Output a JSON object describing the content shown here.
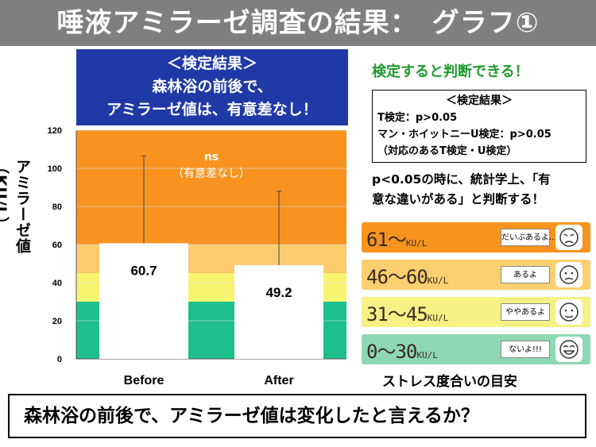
{
  "title": "唾液アミラーゼ調査の結果：　グラフ①",
  "result_box": {
    "line1": "＜検定結果＞",
    "line2": "森林浴の前後で、",
    "line3": "アミラーゼ値は、有意差なし！"
  },
  "chart_data": {
    "type": "bar",
    "categories": [
      "Before",
      "After"
    ],
    "values": [
      60.7,
      49.2
    ],
    "error_upper": [
      106.5,
      88.0
    ],
    "ylabel": "アミラーゼ値（KU/L）",
    "yticks": [
      0,
      20,
      40,
      60,
      80,
      100,
      120
    ],
    "ylim": [
      0,
      120
    ],
    "annotation": {
      "line1": "ns",
      "line2": "（有意差なし）"
    },
    "bands": [
      {
        "from": 0,
        "to": 30,
        "color": "#1dc08c"
      },
      {
        "from": 30,
        "to": 45,
        "color": "#f7f570"
      },
      {
        "from": 45,
        "to": 60,
        "color": "#fbcb6e"
      },
      {
        "from": 60,
        "to": 120,
        "color": "#f7931e"
      }
    ],
    "bar_color": "#ffffff"
  },
  "side": {
    "headline": "検定すると判断できる！",
    "test_box": {
      "title": "＜検定結果＞",
      "line1": "T検定：p>0.05",
      "line2": "マン・ホイットニーU検定：p>0.05",
      "line3": "（対応のあるT検定・U検定）"
    },
    "note_line1": "p<0.05の時に、統計学上、「有",
    "note_line2": "意な違いがある」と判断する！"
  },
  "stress_scale": {
    "caption": "ストレス度合いの目安",
    "unit": "KU/L",
    "rows": [
      {
        "range": "61～",
        "phrase": "だいぶあるよ…",
        "color": "#f7941d",
        "face": "angry-face-icon"
      },
      {
        "range": "46～60",
        "phrase": "あるよ",
        "color": "#fbcf6f",
        "face": "sad-face-icon"
      },
      {
        "range": "31～45",
        "phrase": "ややあるよ",
        "color": "#f5f184",
        "face": "neutral-face-icon"
      },
      {
        "range": "0～30",
        "phrase": "ないよ!!!",
        "color": "#8ed8b4",
        "face": "happy-face-icon"
      }
    ]
  },
  "question": "森林浴の前後で、アミラーゼ値は変化したと言えるか？"
}
